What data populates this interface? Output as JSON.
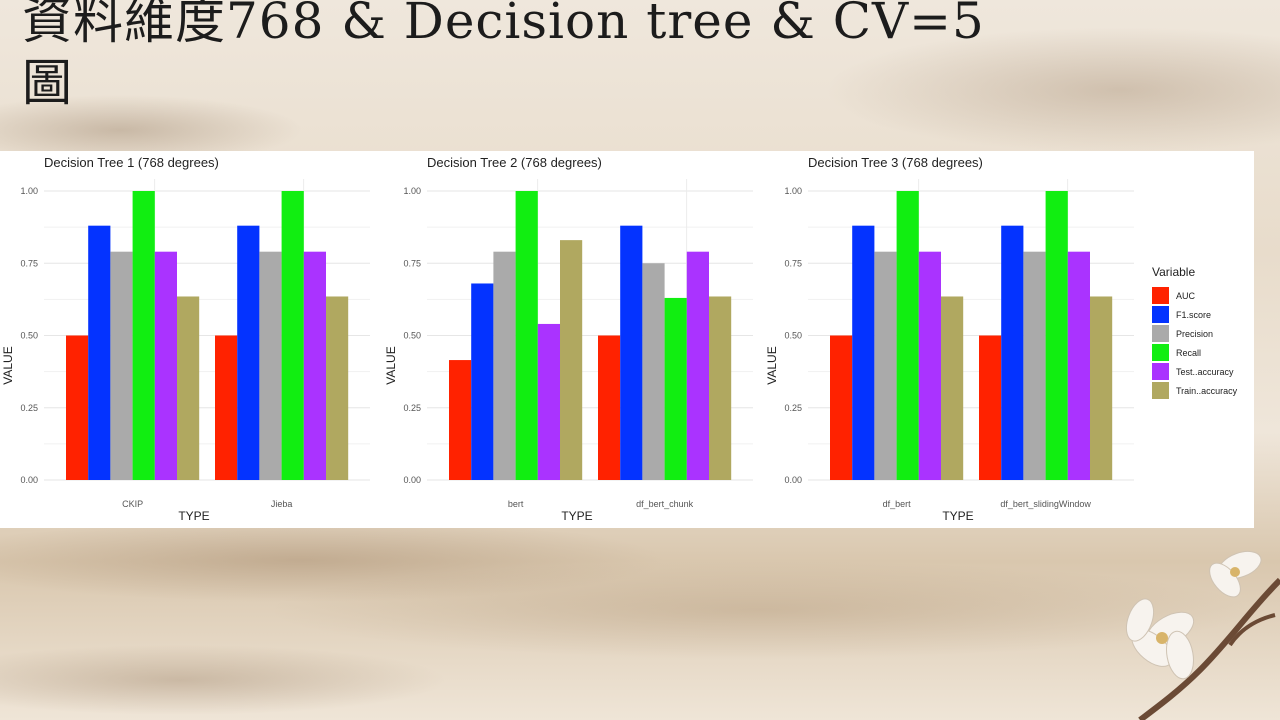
{
  "slide": {
    "title_line1": "資料維度768 & Decision tree & CV=5",
    "title_line2": "圖"
  },
  "legend": {
    "title": "Variable",
    "entries": [
      {
        "name": "AUC",
        "color": "#ff2200"
      },
      {
        "name": "F1.score",
        "color": "#0433ff"
      },
      {
        "name": "Precision",
        "color": "#aaaaaa"
      },
      {
        "name": "Recall",
        "color": "#11ee11"
      },
      {
        "name": "Test..accuracy",
        "color": "#aa33ff"
      },
      {
        "name": "Train..accuracy",
        "color": "#b0a860"
      }
    ]
  },
  "chart_data": [
    {
      "type": "bar",
      "title": "Decision Tree 1 (768 degrees)",
      "xlabel": "TYPE",
      "ylabel": "VALUE",
      "ylim": [
        0,
        1
      ],
      "yticks": [
        "0.00",
        "0.25",
        "0.50",
        "0.75",
        "1.00"
      ],
      "categories": [
        "CKIP",
        "Jieba"
      ],
      "series": [
        {
          "name": "AUC",
          "values": [
            0.5,
            0.5
          ]
        },
        {
          "name": "F1.score",
          "values": [
            0.88,
            0.88
          ]
        },
        {
          "name": "Precision",
          "values": [
            0.79,
            0.79
          ]
        },
        {
          "name": "Recall",
          "values": [
            1.0,
            1.0
          ]
        },
        {
          "name": "Test..accuracy",
          "values": [
            0.79,
            0.79
          ]
        },
        {
          "name": "Train..accuracy",
          "values": [
            0.635,
            0.635
          ]
        }
      ]
    },
    {
      "type": "bar",
      "title": "Decision Tree 2 (768 degrees)",
      "xlabel": "TYPE",
      "ylabel": "VALUE",
      "ylim": [
        0,
        1
      ],
      "yticks": [
        "0.00",
        "0.25",
        "0.50",
        "0.75",
        "1.00"
      ],
      "categories": [
        "bert",
        "df_bert_chunk"
      ],
      "series": [
        {
          "name": "AUC",
          "values": [
            0.415,
            0.5
          ]
        },
        {
          "name": "F1.score",
          "values": [
            0.68,
            0.88
          ]
        },
        {
          "name": "Precision",
          "values": [
            0.79,
            0.75
          ]
        },
        {
          "name": "Recall",
          "values": [
            1.0,
            0.63
          ]
        },
        {
          "name": "Test..accuracy",
          "values": [
            0.54,
            0.79
          ]
        },
        {
          "name": "Train..accuracy",
          "values": [
            0.83,
            0.635
          ]
        }
      ]
    },
    {
      "type": "bar",
      "title": "Decision Tree 3 (768 degrees)",
      "xlabel": "TYPE",
      "ylabel": "VALUE",
      "ylim": [
        0,
        1
      ],
      "yticks": [
        "0.00",
        "0.25",
        "0.50",
        "0.75",
        "1.00"
      ],
      "categories": [
        "df_bert",
        "df_bert_slidingWindow"
      ],
      "series": [
        {
          "name": "AUC",
          "values": [
            0.5,
            0.5
          ]
        },
        {
          "name": "F1.score",
          "values": [
            0.88,
            0.88
          ]
        },
        {
          "name": "Precision",
          "values": [
            0.79,
            0.79
          ]
        },
        {
          "name": "Recall",
          "values": [
            1.0,
            1.0
          ]
        },
        {
          "name": "Test..accuracy",
          "values": [
            0.79,
            0.79
          ]
        },
        {
          "name": "Train..accuracy",
          "values": [
            0.635,
            0.635
          ]
        }
      ]
    }
  ]
}
